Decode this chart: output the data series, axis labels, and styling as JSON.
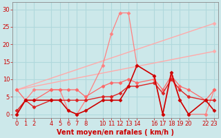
{
  "bg_color": "#cce8ea",
  "grid_color": "#b0d8dc",
  "xlabel": "Vent moyen/en rafales ( km/h )",
  "ylim": [
    -1,
    32
  ],
  "xlim": [
    -0.5,
    23.5
  ],
  "yticks": [
    0,
    5,
    10,
    15,
    20,
    25,
    30
  ],
  "xticks": [
    0,
    1,
    2,
    4,
    5,
    6,
    7,
    8,
    10,
    11,
    12,
    13,
    14,
    16,
    17,
    18,
    19,
    20,
    22,
    23
  ],
  "xticklabels": [
    "0",
    "1",
    "2",
    "4",
    "5",
    "6",
    "7",
    "8",
    "10",
    "11",
    "12",
    "13",
    "14",
    "16",
    "17",
    "18",
    "19",
    "20",
    "22",
    "23"
  ],
  "rafales_jagged_x": [
    0,
    1,
    2,
    4,
    5,
    6,
    7,
    8,
    10,
    11,
    12,
    13,
    14,
    16,
    17,
    18,
    19,
    20,
    22,
    23
  ],
  "rafales_jagged_y": [
    0,
    4,
    7,
    7,
    7,
    1,
    0,
    4,
    14,
    23,
    29,
    29,
    14,
    11,
    0,
    11,
    4,
    0,
    0,
    7
  ],
  "rafales_jagged_color": "#ff8080",
  "rafales_trend_x": [
    0,
    23
  ],
  "rafales_trend_y": [
    7,
    26
  ],
  "rafales_trend_color": "#ffaaaa",
  "moyen_trend_x": [
    0,
    23
  ],
  "moyen_trend_y": [
    7,
    18
  ],
  "moyen_trend_color": "#ffaaaa",
  "moyen_jagged_x": [
    0,
    1,
    2,
    4,
    5,
    6,
    7,
    8,
    10,
    11,
    12,
    13,
    14,
    16,
    17,
    18,
    19,
    20,
    22,
    23
  ],
  "moyen_jagged_y": [
    7,
    4,
    4,
    7,
    7,
    7,
    7,
    5,
    8,
    9,
    9,
    10,
    9,
    10,
    7,
    11,
    8,
    7,
    4,
    7
  ],
  "moyen_jagged_color": "#ff6666",
  "wind_speed_x": [
    0,
    1,
    2,
    4,
    5,
    6,
    7,
    8,
    10,
    11,
    12,
    13,
    14,
    16,
    17,
    18,
    19,
    20,
    22,
    23
  ],
  "wind_speed_y": [
    0,
    4,
    4,
    4,
    4,
    1,
    0,
    1,
    4,
    4,
    4,
    8,
    14,
    11,
    0,
    12,
    4,
    0,
    4,
    1
  ],
  "wind_speed_color": "#cc0000",
  "wind_speed2_x": [
    0,
    1,
    2,
    4,
    5,
    6,
    7,
    8,
    10,
    11,
    12,
    13,
    14,
    16,
    17,
    18,
    19,
    20,
    22,
    23
  ],
  "wind_speed2_y": [
    1,
    4,
    2,
    4,
    4,
    4,
    4,
    4,
    5,
    5,
    6,
    8,
    8,
    9,
    6,
    10,
    7,
    5,
    4,
    4
  ],
  "wind_speed2_color": "#dd2222",
  "marker_size": 2.5,
  "tick_fontsize": 6,
  "xlabel_fontsize": 7,
  "xlabel_color": "#cc0000",
  "tick_color": "#cc0000",
  "spine_color": "#888888"
}
